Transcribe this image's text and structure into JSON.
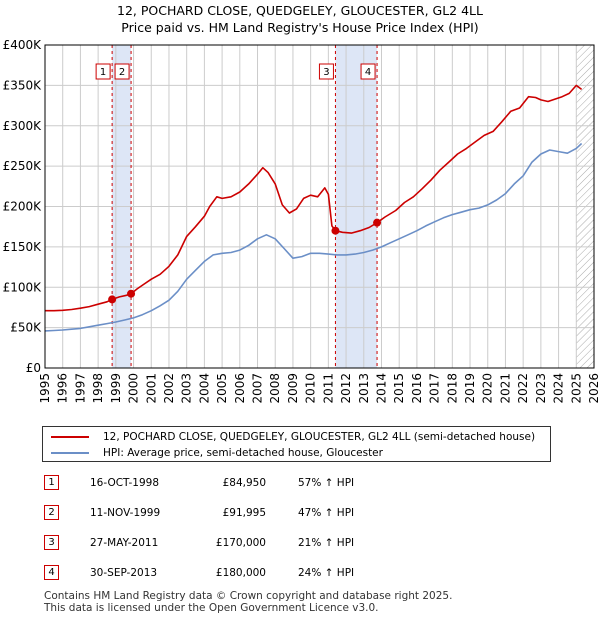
{
  "title_line1": "12, POCHARD CLOSE, QUEDGELEY, GLOUCESTER, GL2 4LL",
  "title_line2": "Price paid vs. HM Land Registry's House Price Index (HPI)",
  "colors": {
    "property": "#cc0000",
    "hpi": "#6b8fc7",
    "shade": "#dde6f6",
    "marker_line": "#cc0000",
    "grid": "#cccccc"
  },
  "legend": {
    "property_label": "12, POCHARD CLOSE, QUEDGELEY, GLOUCESTER, GL2 4LL (semi-detached house)",
    "hpi_label": "HPI: Average price, semi-detached house, Gloucester"
  },
  "sales": [
    {
      "num": "1",
      "date": "16-OCT-1998",
      "price": "£84,950",
      "hpi": "57% ↑ HPI"
    },
    {
      "num": "2",
      "date": "11-NOV-1999",
      "price": "£91,995",
      "hpi": "47% ↑ HPI"
    },
    {
      "num": "3",
      "date": "27-MAY-2011",
      "price": "£170,000",
      "hpi": "21% ↑ HPI"
    },
    {
      "num": "4",
      "date": "30-SEP-2013",
      "price": "£180,000",
      "hpi": "24% ↑ HPI"
    }
  ],
  "footer_line1": "Contains HM Land Registry data © Crown copyright and database right 2025.",
  "footer_line2": "This data is licensed under the Open Government Licence v3.0.",
  "chart_data": {
    "type": "line",
    "title": "12, POCHARD CLOSE, QUEDGELEY, GLOUCESTER, GL2 4LL — Price paid vs. HM Land Registry's House Price Index (HPI)",
    "xlabel": "",
    "ylabel": "",
    "xlim": [
      1995,
      2026
    ],
    "ylim": [
      0,
      400000
    ],
    "y_ticks": [
      {
        "value": 0,
        "label": "£0"
      },
      {
        "value": 50000,
        "label": "£50K"
      },
      {
        "value": 100000,
        "label": "£100K"
      },
      {
        "value": 150000,
        "label": "£150K"
      },
      {
        "value": 200000,
        "label": "£200K"
      },
      {
        "value": 250000,
        "label": "£250K"
      },
      {
        "value": 300000,
        "label": "£300K"
      },
      {
        "value": 350000,
        "label": "£350K"
      },
      {
        "value": 400000,
        "label": "£400K"
      }
    ],
    "x_ticks": [
      1995,
      1996,
      1997,
      1998,
      1999,
      2000,
      2001,
      2002,
      2003,
      2004,
      2005,
      2006,
      2007,
      2008,
      2009,
      2010,
      2011,
      2012,
      2013,
      2014,
      2015,
      2016,
      2017,
      2018,
      2019,
      2020,
      2021,
      2022,
      2023,
      2024,
      2025,
      2026
    ],
    "shaded_periods": [
      [
        1998.79,
        1999.86
      ],
      [
        2011.4,
        2013.75
      ]
    ],
    "forecast_from": 2025.0,
    "sale_markers": [
      {
        "label": "1",
        "x": 1998.79,
        "y": 84950
      },
      {
        "label": "2",
        "x": 1999.86,
        "y": 91995
      },
      {
        "label": "3",
        "x": 2011.4,
        "y": 170000
      },
      {
        "label": "4",
        "x": 2013.75,
        "y": 180000
      }
    ],
    "series": [
      {
        "name": "12, POCHARD CLOSE, QUEDGELEY, GLOUCESTER, GL2 4LL (semi-detached house)",
        "x": [
          1995.0,
          1995.5,
          1996.0,
          1996.5,
          1997.0,
          1997.5,
          1998.0,
          1998.5,
          1998.79,
          1999.2,
          1999.6,
          1999.86,
          2000.2,
          2000.6,
          2001.0,
          2001.5,
          2002.0,
          2002.5,
          2003.0,
          2003.5,
          2004.0,
          2004.3,
          2004.7,
          2005.0,
          2005.5,
          2006.0,
          2006.5,
          2007.0,
          2007.3,
          2007.6,
          2008.0,
          2008.4,
          2008.8,
          2009.2,
          2009.6,
          2010.0,
          2010.4,
          2010.8,
          2011.0,
          2011.2,
          2011.4,
          2011.8,
          2012.3,
          2012.8,
          2013.3,
          2013.75,
          2014.2,
          2014.8,
          2015.3,
          2015.8,
          2016.3,
          2016.8,
          2017.3,
          2017.8,
          2018.3,
          2018.8,
          2019.3,
          2019.8,
          2020.3,
          2020.8,
          2021.3,
          2021.8,
          2022.3,
          2022.7,
          2023.0,
          2023.4,
          2023.8,
          2024.2,
          2024.6,
          2025.0,
          2025.3
        ],
        "values": [
          71000,
          71000,
          71500,
          72500,
          74000,
          76000,
          79000,
          82000,
          84950,
          88000,
          90000,
          91995,
          98000,
          104000,
          110000,
          116000,
          126000,
          140000,
          163000,
          175000,
          188000,
          200000,
          212000,
          210000,
          212000,
          218000,
          228000,
          240000,
          248000,
          242000,
          228000,
          202000,
          192000,
          197000,
          210000,
          214000,
          212000,
          223000,
          215000,
          176000,
          170000,
          168000,
          167000,
          170000,
          174000,
          180000,
          187000,
          195000,
          205000,
          212000,
          222000,
          233000,
          245000,
          255000,
          265000,
          272000,
          280000,
          288000,
          293000,
          305000,
          318000,
          322000,
          336000,
          335000,
          332000,
          330000,
          333000,
          336000,
          340000,
          350000,
          345000
        ]
      },
      {
        "name": "HPI: Average price, semi-detached house, Gloucester",
        "x": [
          1995.0,
          1995.5,
          1996.0,
          1996.5,
          1997.0,
          1997.5,
          1998.0,
          1998.5,
          1999.0,
          1999.5,
          2000.0,
          2000.5,
          2001.0,
          2001.5,
          2002.0,
          2002.5,
          2003.0,
          2003.5,
          2004.0,
          2004.5,
          2005.0,
          2005.5,
          2006.0,
          2006.5,
          2007.0,
          2007.5,
          2008.0,
          2008.5,
          2009.0,
          2009.5,
          2010.0,
          2010.5,
          2011.0,
          2011.5,
          2012.0,
          2012.5,
          2013.0,
          2013.5,
          2014.0,
          2014.5,
          2015.0,
          2015.5,
          2016.0,
          2016.5,
          2017.0,
          2017.5,
          2018.0,
          2018.5,
          2019.0,
          2019.5,
          2020.0,
          2020.5,
          2021.0,
          2021.5,
          2022.0,
          2022.5,
          2023.0,
          2023.5,
          2024.0,
          2024.5,
          2025.0,
          2025.3
        ],
        "values": [
          46000,
          46500,
          47000,
          48000,
          49000,
          51000,
          53000,
          55000,
          57000,
          59500,
          62000,
          66000,
          71000,
          77000,
          84000,
          95000,
          110000,
          121000,
          132000,
          140000,
          142000,
          143000,
          146000,
          152000,
          160000,
          165000,
          160000,
          148000,
          136000,
          138000,
          142000,
          142000,
          141000,
          140000,
          140000,
          141000,
          143000,
          146000,
          150000,
          155000,
          160000,
          165000,
          170000,
          176000,
          181000,
          186000,
          190000,
          193000,
          196000,
          198000,
          202000,
          208000,
          216000,
          228000,
          238000,
          255000,
          265000,
          270000,
          268000,
          266000,
          272000,
          278000
        ]
      }
    ]
  }
}
